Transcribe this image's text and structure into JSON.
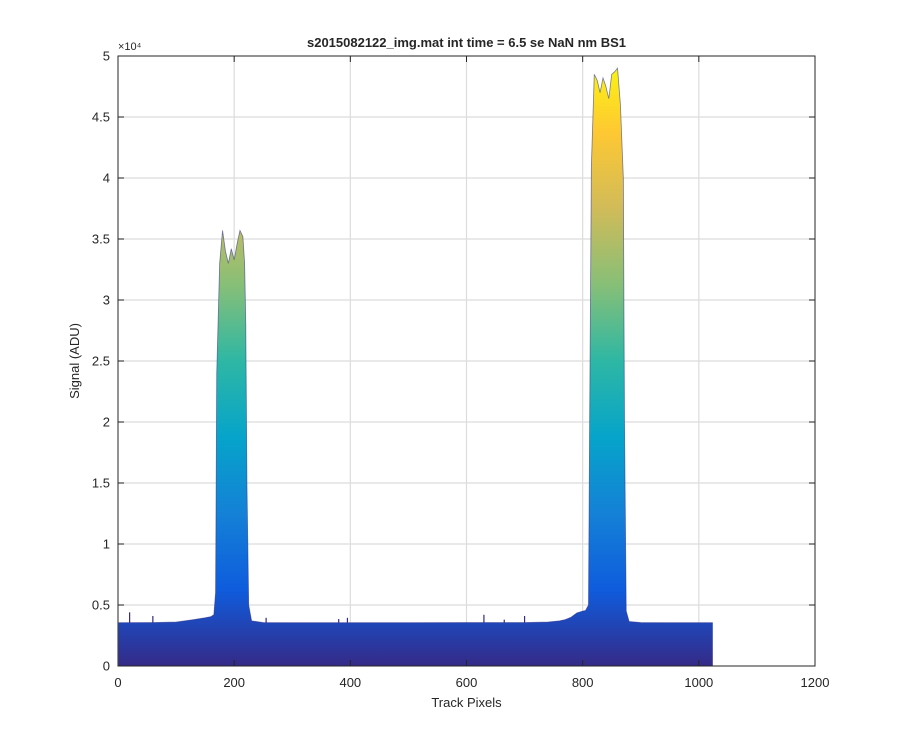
{
  "chart_data": {
    "type": "area",
    "title": "s2015082122_img.mat int time = 6.5 se  NaN nm BS1",
    "xlabel": "Track Pixels",
    "ylabel": "Signal (ADU)",
    "y_exponent_label": "×10⁴",
    "xlim": [
      0,
      1200
    ],
    "ylim": [
      0,
      50000
    ],
    "xticks": [
      0,
      200,
      400,
      600,
      800,
      1000,
      1200
    ],
    "xtick_labels": [
      "0",
      "200",
      "400",
      "600",
      "800",
      "1000",
      "1200"
    ],
    "yticks": [
      0,
      5000,
      10000,
      15000,
      20000,
      25000,
      30000,
      35000,
      40000,
      45000,
      50000
    ],
    "ytick_labels": [
      "0",
      "0.5",
      "1",
      "1.5",
      "2",
      "2.5",
      "3",
      "3.5",
      "4",
      "4.5",
      "5"
    ],
    "grid": true,
    "colormap": [
      "#352a87",
      "#0f5cdd",
      "#1481d6",
      "#06a4ca",
      "#2eb7a4",
      "#87bf77",
      "#d1bb59",
      "#fec832",
      "#f9fb0e"
    ],
    "series": [
      {
        "x": [
          1,
          60,
          100,
          130,
          150,
          160,
          165,
          168,
          170,
          175,
          180,
          185,
          190,
          195,
          200,
          205,
          210,
          215,
          218,
          220,
          222,
          225,
          230,
          250,
          300,
          400,
          500,
          600,
          700,
          740,
          760,
          770,
          780,
          790,
          800,
          805,
          810,
          812,
          815,
          820,
          825,
          830,
          835,
          840,
          845,
          850,
          855,
          860,
          865,
          870,
          872,
          875,
          880,
          900,
          950,
          1000,
          1024
        ],
        "y": [
          3550,
          3560,
          3600,
          3800,
          3950,
          4050,
          4200,
          6000,
          24000,
          33000,
          35700,
          34000,
          33000,
          34200,
          33300,
          34600,
          35700,
          35200,
          33000,
          28000,
          15000,
          5000,
          3700,
          3560,
          3550,
          3550,
          3550,
          3560,
          3560,
          3600,
          3700,
          3800,
          4000,
          4350,
          4500,
          4550,
          5000,
          20000,
          41000,
          48500,
          48000,
          47000,
          48200,
          47500,
          46500,
          48500,
          48700,
          49000,
          46000,
          40000,
          20000,
          4500,
          3650,
          3560,
          3550,
          3550,
          3550
        ]
      }
    ],
    "spikes": [
      {
        "x": 20,
        "y": 4400
      },
      {
        "x": 60,
        "y": 4100
      },
      {
        "x": 255,
        "y": 3950
      },
      {
        "x": 380,
        "y": 3850
      },
      {
        "x": 395,
        "y": 3950
      },
      {
        "x": 630,
        "y": 4200
      },
      {
        "x": 665,
        "y": 3800
      },
      {
        "x": 700,
        "y": 4100
      }
    ]
  }
}
